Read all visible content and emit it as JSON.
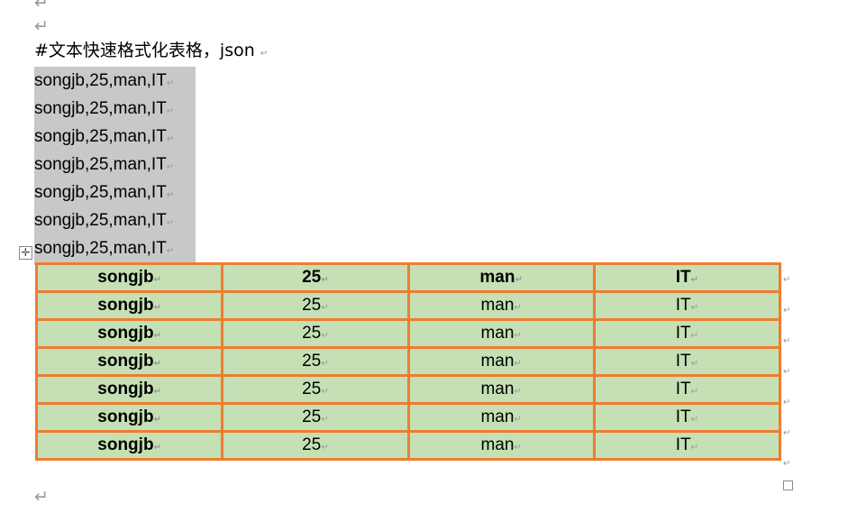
{
  "title": "#文本快速格式化表格，json",
  "paragraph_mark": "↵",
  "text_lines": [
    "songjb,25,man,IT",
    "songjb,25,man,IT",
    "songjb,25,man,IT",
    "songjb,25,man,IT",
    "songjb,25,man,IT",
    "songjb,25,man,IT",
    "songjb,25,man,IT"
  ],
  "table": {
    "rows": [
      [
        "songjb",
        "25",
        "man",
        "IT"
      ],
      [
        "songjb",
        "25",
        "man",
        "IT"
      ],
      [
        "songjb",
        "25",
        "man",
        "IT"
      ],
      [
        "songjb",
        "25",
        "man",
        "IT"
      ],
      [
        "songjb",
        "25",
        "man",
        "IT"
      ],
      [
        "songjb",
        "25",
        "man",
        "IT"
      ],
      [
        "songjb",
        "25",
        "man",
        "IT"
      ]
    ]
  },
  "colors": {
    "border": "#ED7D31",
    "cell_fill": "#C5E0B4",
    "highlight": "#C8C8C8"
  },
  "icons": {
    "table_move_handle": "move-icon",
    "table_resize_handle": "resize-icon"
  }
}
